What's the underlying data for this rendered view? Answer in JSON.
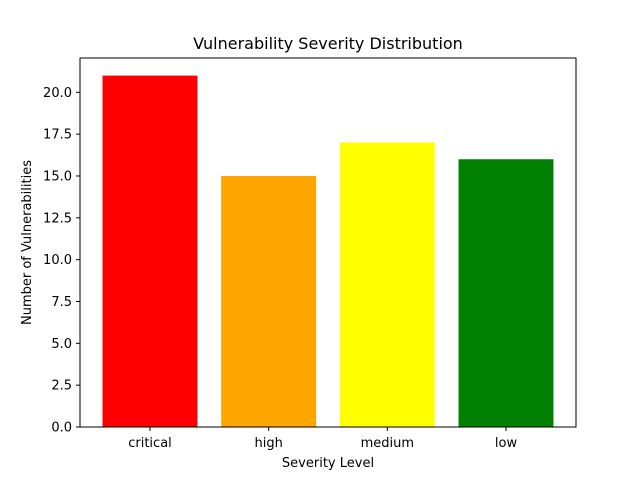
{
  "chart_data": {
    "type": "bar",
    "title": "Vulnerability Severity Distribution",
    "xlabel": "Severity Level",
    "ylabel": "Number of Vulnerabilities",
    "categories": [
      "critical",
      "high",
      "medium",
      "low"
    ],
    "values": [
      21,
      15,
      17,
      16
    ],
    "colors": [
      "#ff0000",
      "#ffa500",
      "#ffff00",
      "#008000"
    ],
    "ylim": [
      0,
      22.05
    ],
    "yticks": [
      0.0,
      2.5,
      5.0,
      7.5,
      10.0,
      12.5,
      15.0,
      17.5,
      20.0
    ],
    "ytick_labels": [
      "0.0",
      "2.5",
      "5.0",
      "7.5",
      "10.0",
      "12.5",
      "15.0",
      "17.5",
      "20.0"
    ],
    "grid": false,
    "legend": "none"
  }
}
